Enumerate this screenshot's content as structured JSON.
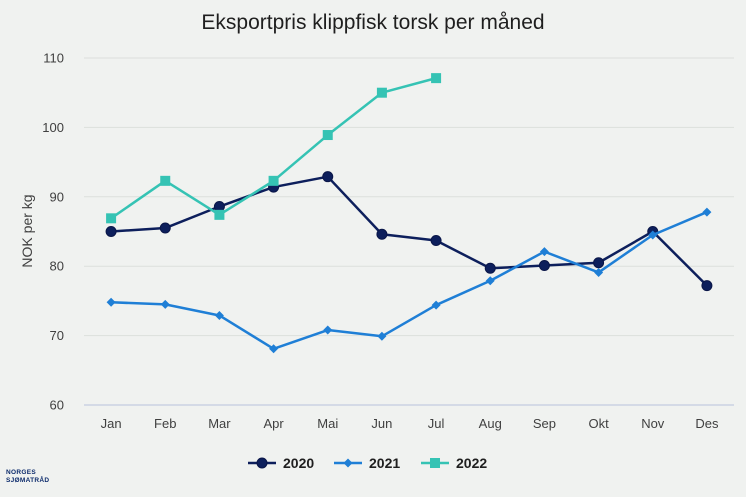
{
  "chart_data": {
    "type": "line",
    "title": "Eksportpris klippfisk torsk per måned",
    "xlabel": "",
    "ylabel": "NOK per kg",
    "categories": [
      "Jan",
      "Feb",
      "Mar",
      "Apr",
      "Mai",
      "Jun",
      "Jul",
      "Aug",
      "Sep",
      "Okt",
      "Nov",
      "Des"
    ],
    "ylim": [
      60,
      110
    ],
    "yticks": [
      60,
      70,
      80,
      90,
      100,
      110
    ],
    "grid": "horizontal",
    "legend_position": "bottom",
    "series": [
      {
        "name": "2020",
        "color": "#0d1f5c",
        "marker": "circle",
        "values": [
          85.0,
          85.5,
          88.6,
          91.4,
          92.9,
          84.6,
          83.7,
          79.7,
          80.1,
          80.5,
          85.0,
          77.2
        ]
      },
      {
        "name": "2021",
        "color": "#1f7fd6",
        "marker": "diamond",
        "values": [
          74.8,
          74.5,
          72.9,
          68.1,
          70.8,
          69.9,
          74.4,
          77.9,
          82.1,
          79.1,
          84.5,
          87.8
        ]
      },
      {
        "name": "2022",
        "color": "#35c3b4",
        "marker": "square",
        "values": [
          86.9,
          92.3,
          87.4,
          92.3,
          98.9,
          105.0,
          107.1,
          null,
          null,
          null,
          null,
          null
        ]
      }
    ]
  },
  "logo": {
    "line1": "NORGES",
    "line2": "SJØMATRÅD"
  }
}
